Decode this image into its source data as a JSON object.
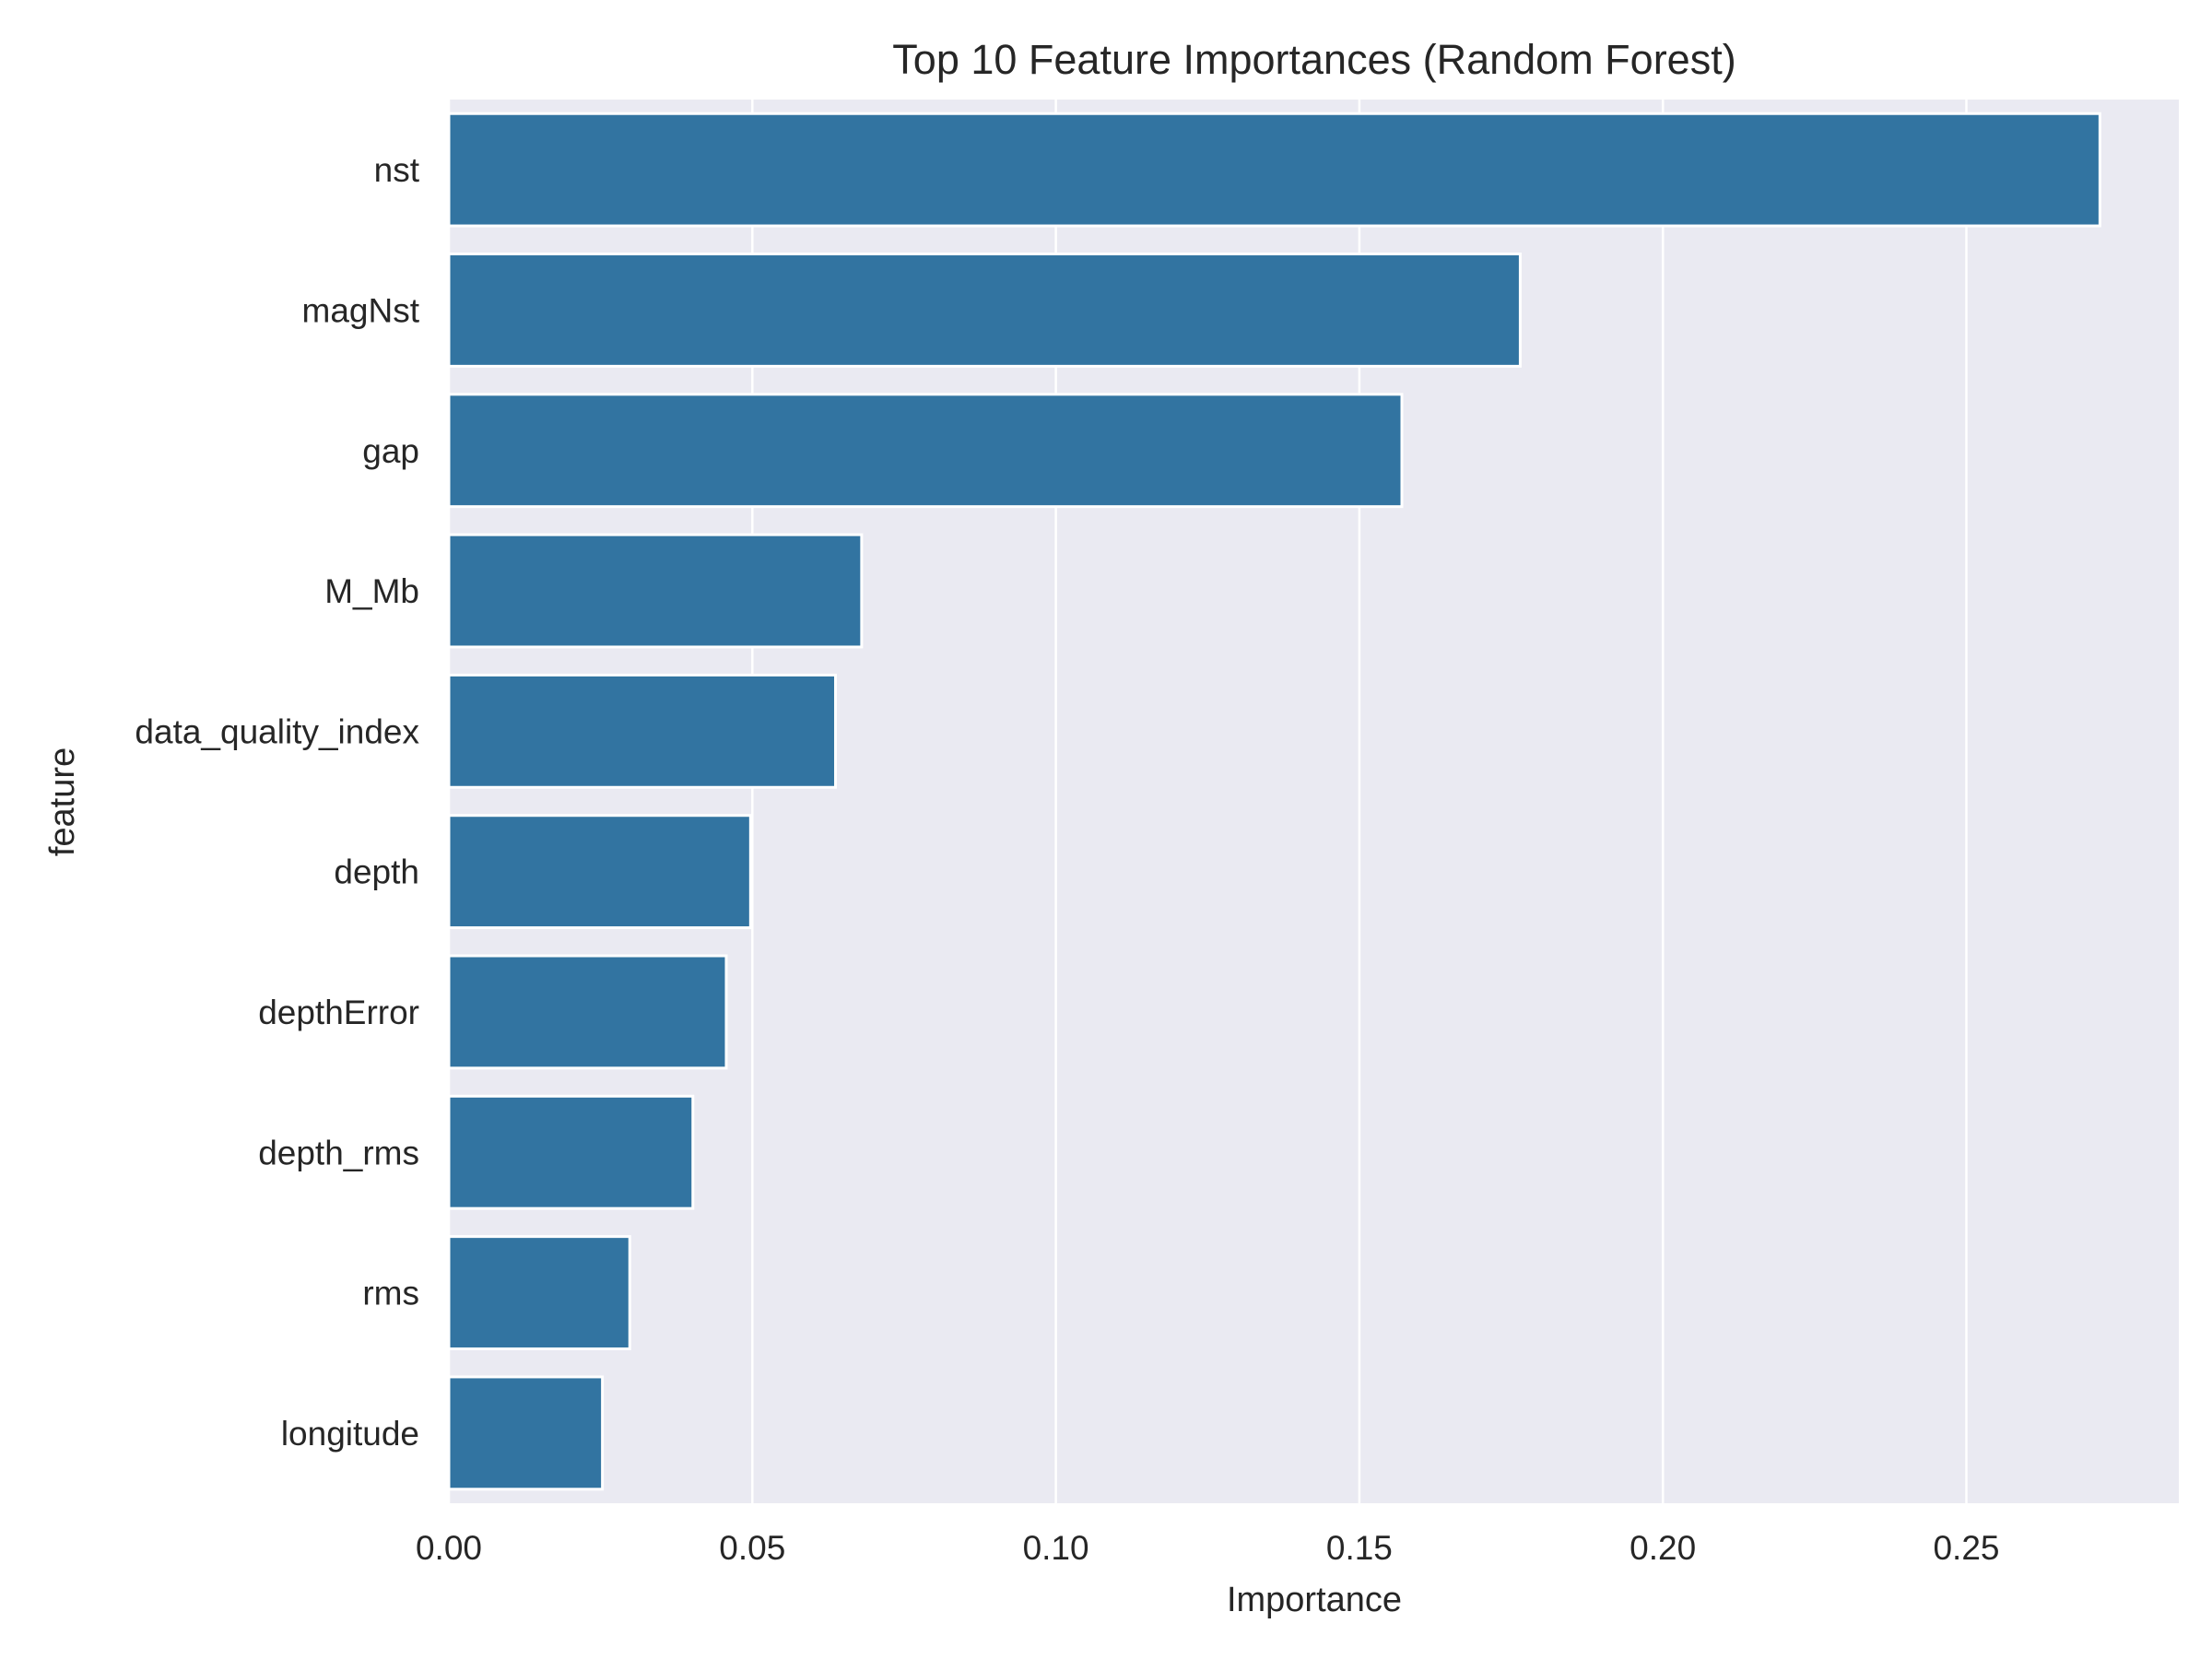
{
  "chart_data": {
    "type": "bar",
    "orientation": "horizontal",
    "title": "Top 10 Feature Importances (Random Forest)",
    "xlabel": "Importance",
    "ylabel": "feature",
    "categories": [
      "nst",
      "magNst",
      "gap",
      "M_Mb",
      "data_quality_index",
      "depth",
      "depthError",
      "depth_rms",
      "rms",
      "longitude"
    ],
    "values": [
      0.272,
      0.1765,
      0.157,
      0.068,
      0.0637,
      0.0497,
      0.0457,
      0.0402,
      0.0298,
      0.0253
    ],
    "xlim": [
      0,
      0.285
    ],
    "xticks": [
      "0.00",
      "0.05",
      "0.10",
      "0.15",
      "0.20",
      "0.25"
    ],
    "grid": true,
    "bar_color": "#3274a1",
    "background_color": "#eaeaf2"
  }
}
